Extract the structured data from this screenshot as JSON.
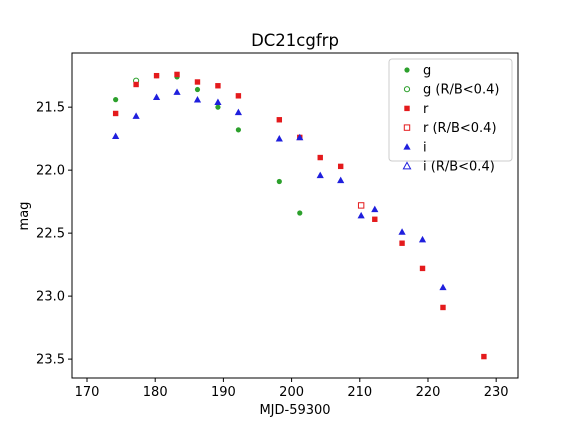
{
  "chart_data": {
    "type": "scatter",
    "title": "DC21cgfrp",
    "xlabel": "MJD-59300",
    "ylabel": "mag",
    "xlim": [
      167.8,
      233.2
    ],
    "ylim": [
      23.65,
      21.07
    ],
    "y_inverted": true,
    "xticks": [
      170,
      180,
      190,
      200,
      210,
      220,
      230
    ],
    "yticks": [
      21.5,
      22.0,
      22.5,
      23.0,
      23.5
    ],
    "xtick_labels": [
      "170",
      "180",
      "190",
      "200",
      "210",
      "220",
      "230"
    ],
    "ytick_labels": [
      "21.5",
      "22.0",
      "22.5",
      "23.0",
      "23.5"
    ],
    "grid": false,
    "legend_position": "top-right",
    "series": [
      {
        "name": "g",
        "color": "#2ca02c",
        "marker": "circle",
        "filled": true,
        "x": [
          174.2,
          180.2,
          183.2,
          186.2,
          189.2,
          192.2,
          198.2,
          201.2
        ],
        "y": [
          21.44,
          21.25,
          21.26,
          21.36,
          21.5,
          21.68,
          22.09,
          22.34
        ]
      },
      {
        "name": "g (R/B<0.4)",
        "color": "#2ca02c",
        "marker": "circle",
        "filled": false,
        "x": [
          177.2
        ],
        "y": [
          21.29
        ]
      },
      {
        "name": "r",
        "color": "#e41a1c",
        "marker": "square",
        "filled": true,
        "x": [
          174.2,
          177.2,
          180.2,
          183.2,
          186.2,
          189.2,
          192.2,
          198.2,
          201.2,
          204.2,
          207.2,
          212.2,
          216.2,
          219.2,
          222.2,
          228.2
        ],
        "y": [
          21.55,
          21.32,
          21.25,
          21.24,
          21.3,
          21.33,
          21.41,
          21.6,
          21.74,
          21.9,
          21.97,
          22.39,
          22.58,
          22.78,
          23.09,
          23.48
        ]
      },
      {
        "name": "r (R/B<0.4)",
        "color": "#e41a1c",
        "marker": "square",
        "filled": false,
        "x": [
          210.2
        ],
        "y": [
          22.28
        ]
      },
      {
        "name": "i",
        "color": "#1f1fdd",
        "marker": "triangle",
        "filled": true,
        "x": [
          174.2,
          177.2,
          180.2,
          183.2,
          186.2,
          189.2,
          192.2,
          198.2,
          201.2,
          204.2,
          207.2,
          210.2,
          212.2,
          216.2,
          219.2,
          222.2
        ],
        "y": [
          21.73,
          21.57,
          21.42,
          21.38,
          21.44,
          21.46,
          21.54,
          21.75,
          21.74,
          22.04,
          22.08,
          22.36,
          22.31,
          22.49,
          22.55,
          22.93
        ]
      },
      {
        "name": "i (R/B<0.4)",
        "color": "#1f1fdd",
        "marker": "triangle",
        "filled": false,
        "x": [],
        "y": []
      }
    ]
  }
}
